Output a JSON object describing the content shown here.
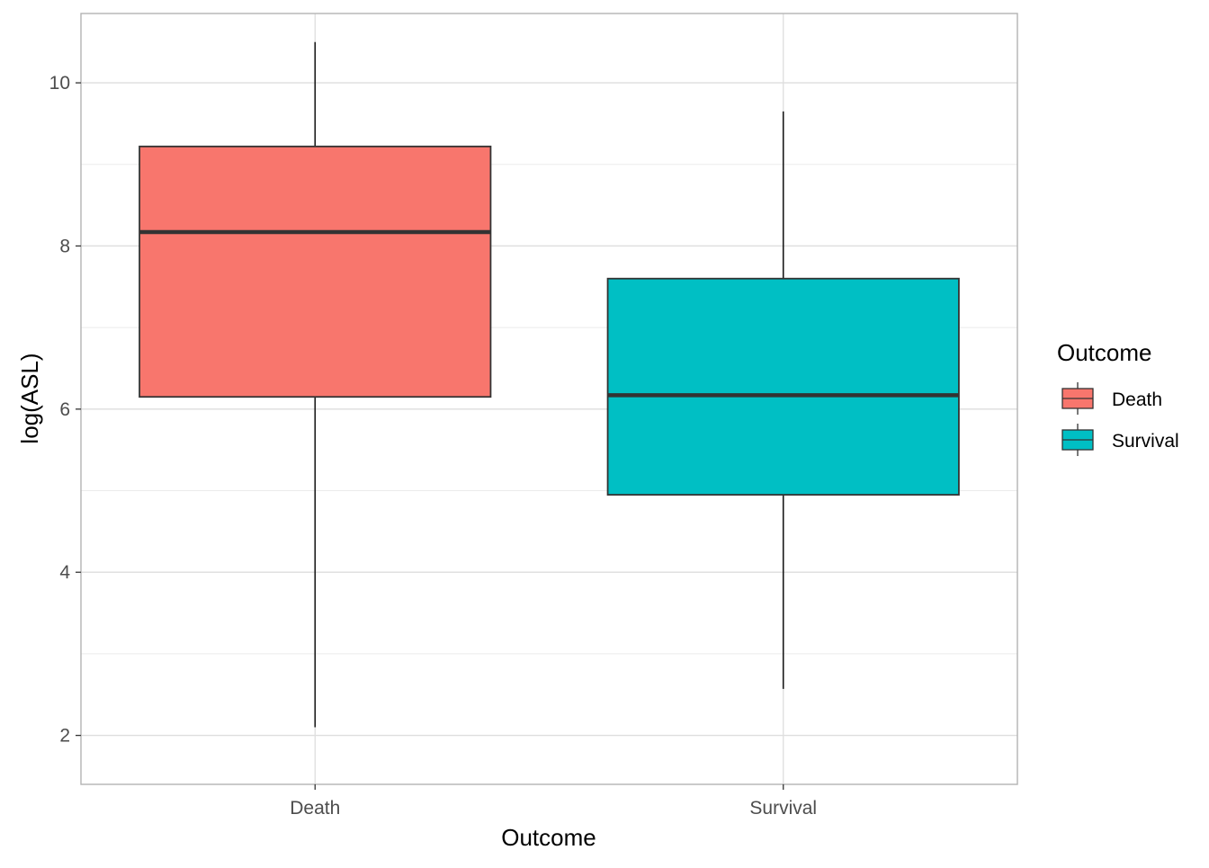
{
  "chart_data": {
    "type": "box",
    "title": "",
    "xlabel": "Outcome",
    "ylabel": "log(ASL)",
    "categories": [
      "Death",
      "Survival"
    ],
    "y_ticks": [
      2,
      4,
      6,
      8,
      10
    ],
    "y_tick_labels": [
      "2",
      "4",
      "6",
      "8",
      "10"
    ],
    "ylim": [
      1.4,
      10.85
    ],
    "grid": true,
    "boxes": [
      {
        "category": "Death",
        "min": 2.1,
        "q1": 6.15,
        "median": 8.17,
        "q3": 9.22,
        "max": 10.5,
        "fill": "#F8766D"
      },
      {
        "category": "Survival",
        "min": 2.57,
        "q1": 4.95,
        "median": 6.17,
        "q3": 7.6,
        "max": 9.65,
        "fill": "#00BFC4"
      }
    ],
    "legend": {
      "title": "Outcome",
      "placement": "right",
      "items": [
        {
          "label": "Death",
          "color": "#F8766D"
        },
        {
          "label": "Survival",
          "color": "#00BFC4"
        }
      ]
    }
  }
}
